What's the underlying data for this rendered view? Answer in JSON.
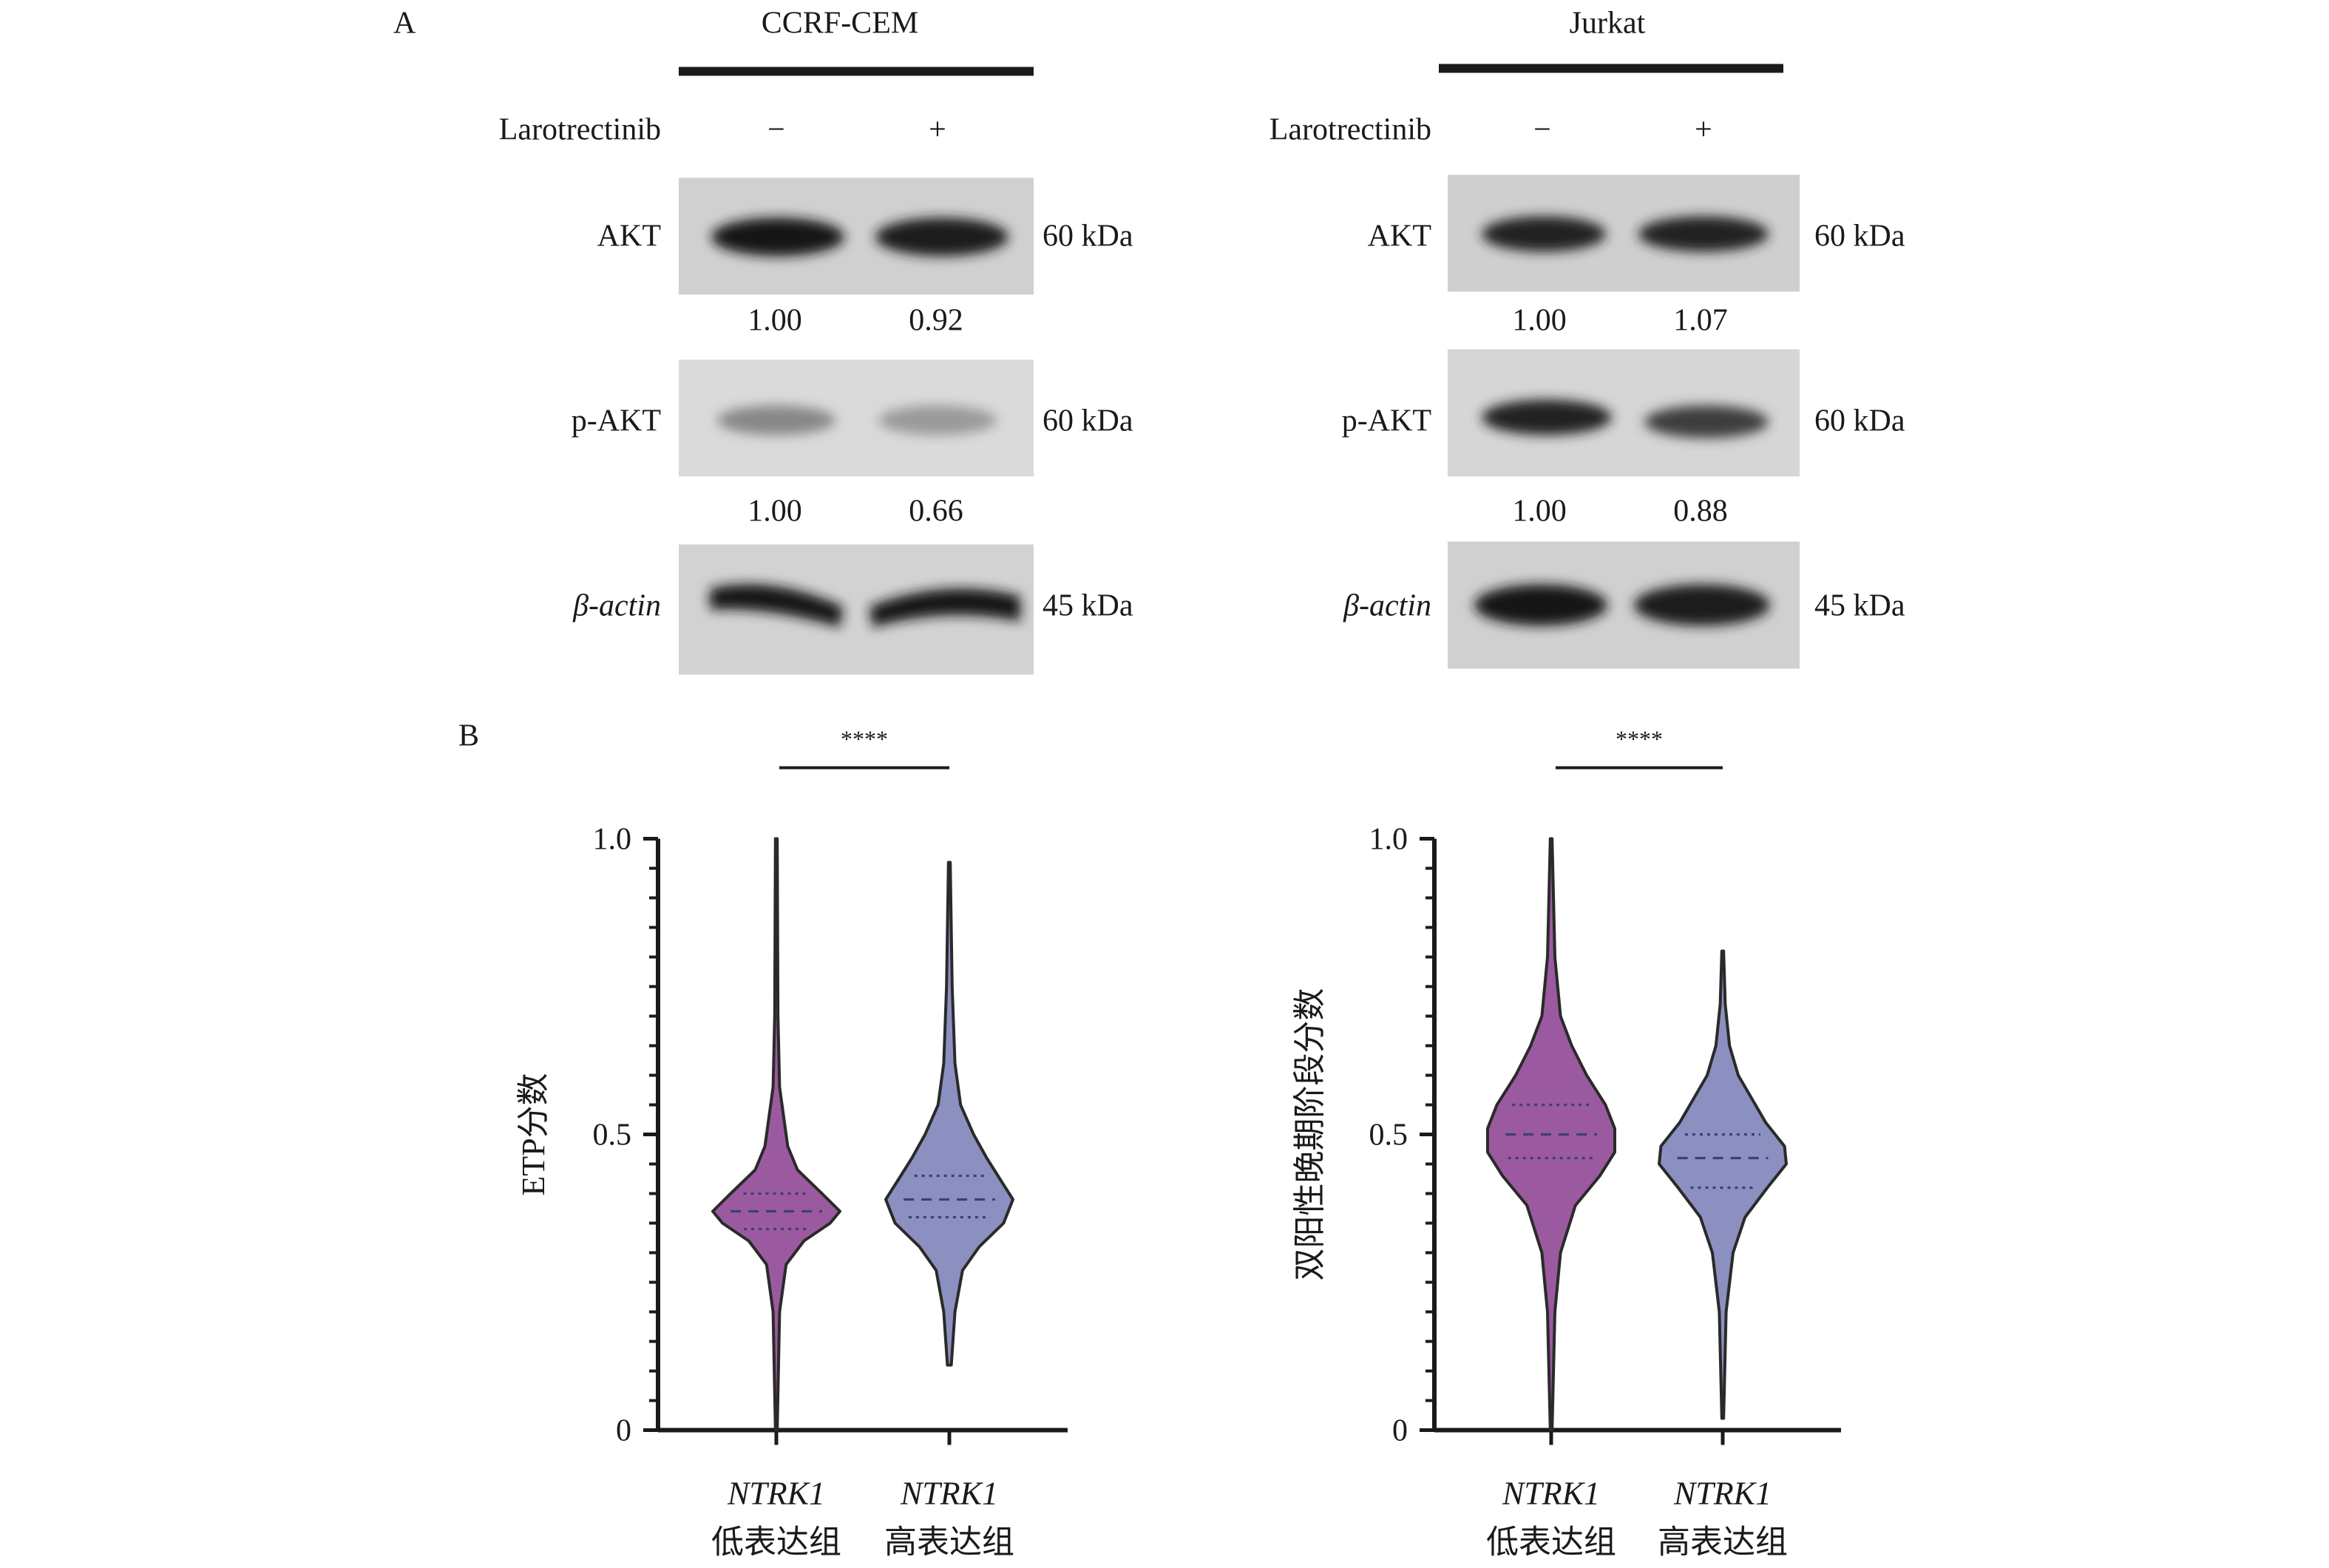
{
  "panel_a": {
    "label": "A",
    "treatment_label": "Larotrectinib",
    "lanes": [
      "−",
      "+"
    ],
    "blots": [
      {
        "cell_line": "CCRF-CEM",
        "rows": [
          {
            "protein": "AKT",
            "kda": "60 kDa",
            "quant": [
              "1.00",
              "0.92"
            ],
            "intensity": [
              0.95,
              0.92
            ]
          },
          {
            "protein": "p-AKT",
            "kda": "60 kDa",
            "quant": [
              "1.00",
              "0.66"
            ],
            "intensity": [
              0.35,
              0.25
            ]
          },
          {
            "protein": "β-actin",
            "kda": "45 kDa",
            "quant": null,
            "intensity": [
              0.95,
              0.95
            ]
          }
        ]
      },
      {
        "cell_line": "Jurkat",
        "rows": [
          {
            "protein": "AKT",
            "kda": "60 kDa",
            "quant": [
              "1.00",
              "1.07"
            ],
            "intensity": [
              0.9,
              0.9
            ]
          },
          {
            "protein": "p-AKT",
            "kda": "60 kDa",
            "quant": [
              "1.00",
              "0.88"
            ],
            "intensity": [
              0.9,
              0.75
            ]
          },
          {
            "protein": "β-actin",
            "kda": "45 kDa",
            "quant": null,
            "intensity": [
              0.95,
              0.92
            ]
          }
        ]
      }
    ]
  },
  "panel_b": {
    "label": "B",
    "significance": "****",
    "group_gene": "NTRK1",
    "group_labels": [
      "低表达组",
      "高表达组"
    ]
  },
  "chart_data": [
    {
      "type": "violin",
      "ylabel": "ETP分数",
      "ylim": [
        0,
        1.0
      ],
      "yticks": [
        "0",
        "0.5",
        "1.0"
      ],
      "categories": [
        "NTRK1 低表达组",
        "NTRK1 高表达组"
      ],
      "series": [
        {
          "color": "#9b5a9f",
          "min": 0.0,
          "max": 1.0,
          "q1": 0.34,
          "median": 0.37,
          "q3": 0.4,
          "profile": [
            [
              0.0,
              0.005
            ],
            [
              0.2,
              0.02
            ],
            [
              0.28,
              0.06
            ],
            [
              0.32,
              0.17
            ],
            [
              0.35,
              0.33
            ],
            [
              0.37,
              0.39
            ],
            [
              0.4,
              0.28
            ],
            [
              0.44,
              0.13
            ],
            [
              0.48,
              0.07
            ],
            [
              0.52,
              0.05
            ],
            [
              0.58,
              0.02
            ],
            [
              0.7,
              0.01
            ],
            [
              1.0,
              0.005
            ]
          ]
        },
        {
          "color": "#8c90c0",
          "min": 0.11,
          "max": 0.96,
          "q1": 0.36,
          "median": 0.39,
          "q3": 0.43,
          "profile": [
            [
              0.11,
              0.01
            ],
            [
              0.2,
              0.03
            ],
            [
              0.27,
              0.07
            ],
            [
              0.31,
              0.16
            ],
            [
              0.35,
              0.29
            ],
            [
              0.39,
              0.34
            ],
            [
              0.42,
              0.28
            ],
            [
              0.46,
              0.2
            ],
            [
              0.5,
              0.13
            ],
            [
              0.55,
              0.06
            ],
            [
              0.62,
              0.03
            ],
            [
              0.75,
              0.015
            ],
            [
              0.96,
              0.005
            ]
          ]
        }
      ]
    },
    {
      "type": "violin",
      "ylabel": "双阳性晚期阶段分数",
      "ylim": [
        0,
        1.0
      ],
      "yticks": [
        "0",
        "0.5",
        "1.0"
      ],
      "categories": [
        "NTRK1 低表达组",
        "NTRK1 高表达组"
      ],
      "series": [
        {
          "color": "#9b5a9f",
          "min": 0.0,
          "max": 1.0,
          "q1": 0.46,
          "median": 0.5,
          "q3": 0.55,
          "profile": [
            [
              0.0,
              0.005
            ],
            [
              0.2,
              0.02
            ],
            [
              0.3,
              0.05
            ],
            [
              0.38,
              0.13
            ],
            [
              0.43,
              0.26
            ],
            [
              0.47,
              0.34
            ],
            [
              0.51,
              0.34
            ],
            [
              0.55,
              0.29
            ],
            [
              0.6,
              0.19
            ],
            [
              0.65,
              0.11
            ],
            [
              0.7,
              0.05
            ],
            [
              0.8,
              0.02
            ],
            [
              1.0,
              0.005
            ]
          ]
        },
        {
          "color": "#8c90c0",
          "min": 0.02,
          "max": 0.81,
          "q1": 0.41,
          "median": 0.46,
          "q3": 0.5,
          "profile": [
            [
              0.02,
              0.005
            ],
            [
              0.2,
              0.02
            ],
            [
              0.3,
              0.06
            ],
            [
              0.36,
              0.13
            ],
            [
              0.41,
              0.26
            ],
            [
              0.45,
              0.37
            ],
            [
              0.48,
              0.36
            ],
            [
              0.52,
              0.25
            ],
            [
              0.56,
              0.17
            ],
            [
              0.6,
              0.09
            ],
            [
              0.65,
              0.04
            ],
            [
              0.72,
              0.015
            ],
            [
              0.81,
              0.005
            ]
          ]
        }
      ]
    }
  ]
}
